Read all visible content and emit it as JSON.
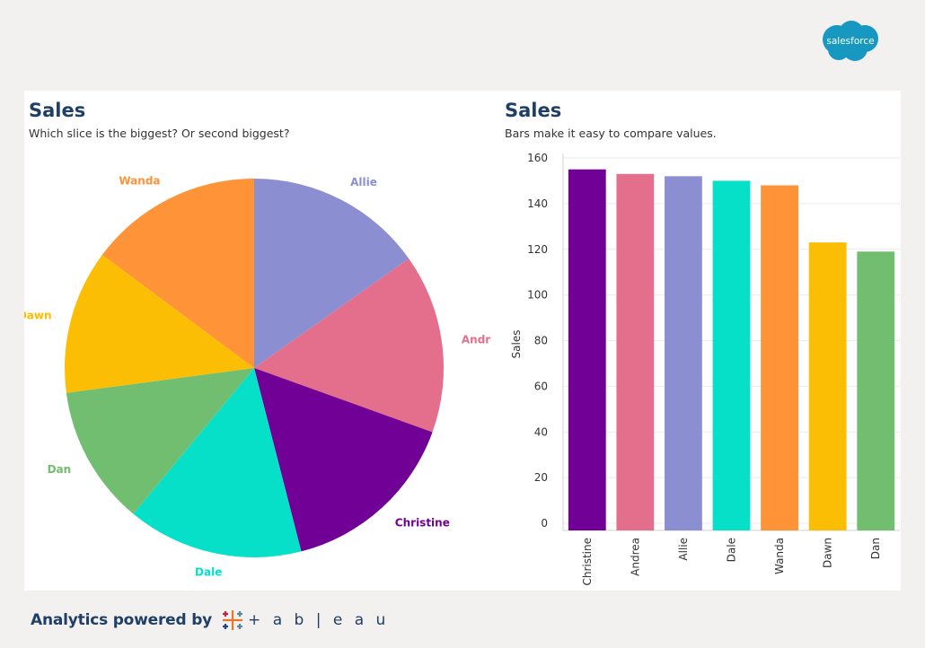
{
  "brand": {
    "logo_text": "salesforce",
    "footer_text": "Analytics powered by",
    "tableau_word": "+ a b | e a u"
  },
  "pie": {
    "title": "Sales",
    "subtitle": "Which slice is the biggest? Or second biggest?"
  },
  "bar": {
    "title": "Sales",
    "subtitle": "Bars make it easy to compare values."
  },
  "chart_data": [
    {
      "type": "pie",
      "title": "Sales",
      "subtitle": "Which slice is the biggest? Or second biggest?",
      "slices": [
        {
          "label": "Allie",
          "value": 152,
          "color": "#8b8fd1"
        },
        {
          "label": "Andrea",
          "value": 153,
          "color": "#e36f8c"
        },
        {
          "label": "Christine",
          "value": 155,
          "color": "#710096"
        },
        {
          "label": "Dale",
          "value": 150,
          "color": "#06e0c8"
        },
        {
          "label": "Dan",
          "value": 119,
          "color": "#72be70"
        },
        {
          "label": "Dawn",
          "value": 123,
          "color": "#fbbe04"
        },
        {
          "label": "Wanda",
          "value": 148,
          "color": "#fe9338"
        }
      ]
    },
    {
      "type": "bar",
      "title": "Sales",
      "subtitle": "Bars make it easy to compare values.",
      "ylabel": "Sales",
      "xlabel": "",
      "ylim": [
        0,
        160
      ],
      "yticks": [
        0,
        20,
        40,
        60,
        80,
        100,
        120,
        140,
        160
      ],
      "grid": true,
      "categories": [
        "Christine",
        "Andrea",
        "Allie",
        "Dale",
        "Wanda",
        "Dawn",
        "Dan"
      ],
      "values": [
        155,
        153,
        152,
        150,
        148,
        123,
        119
      ],
      "colors": [
        "#710096",
        "#e36f8c",
        "#8b8fd1",
        "#06e0c8",
        "#fe9338",
        "#fbbe04",
        "#72be70"
      ]
    }
  ]
}
